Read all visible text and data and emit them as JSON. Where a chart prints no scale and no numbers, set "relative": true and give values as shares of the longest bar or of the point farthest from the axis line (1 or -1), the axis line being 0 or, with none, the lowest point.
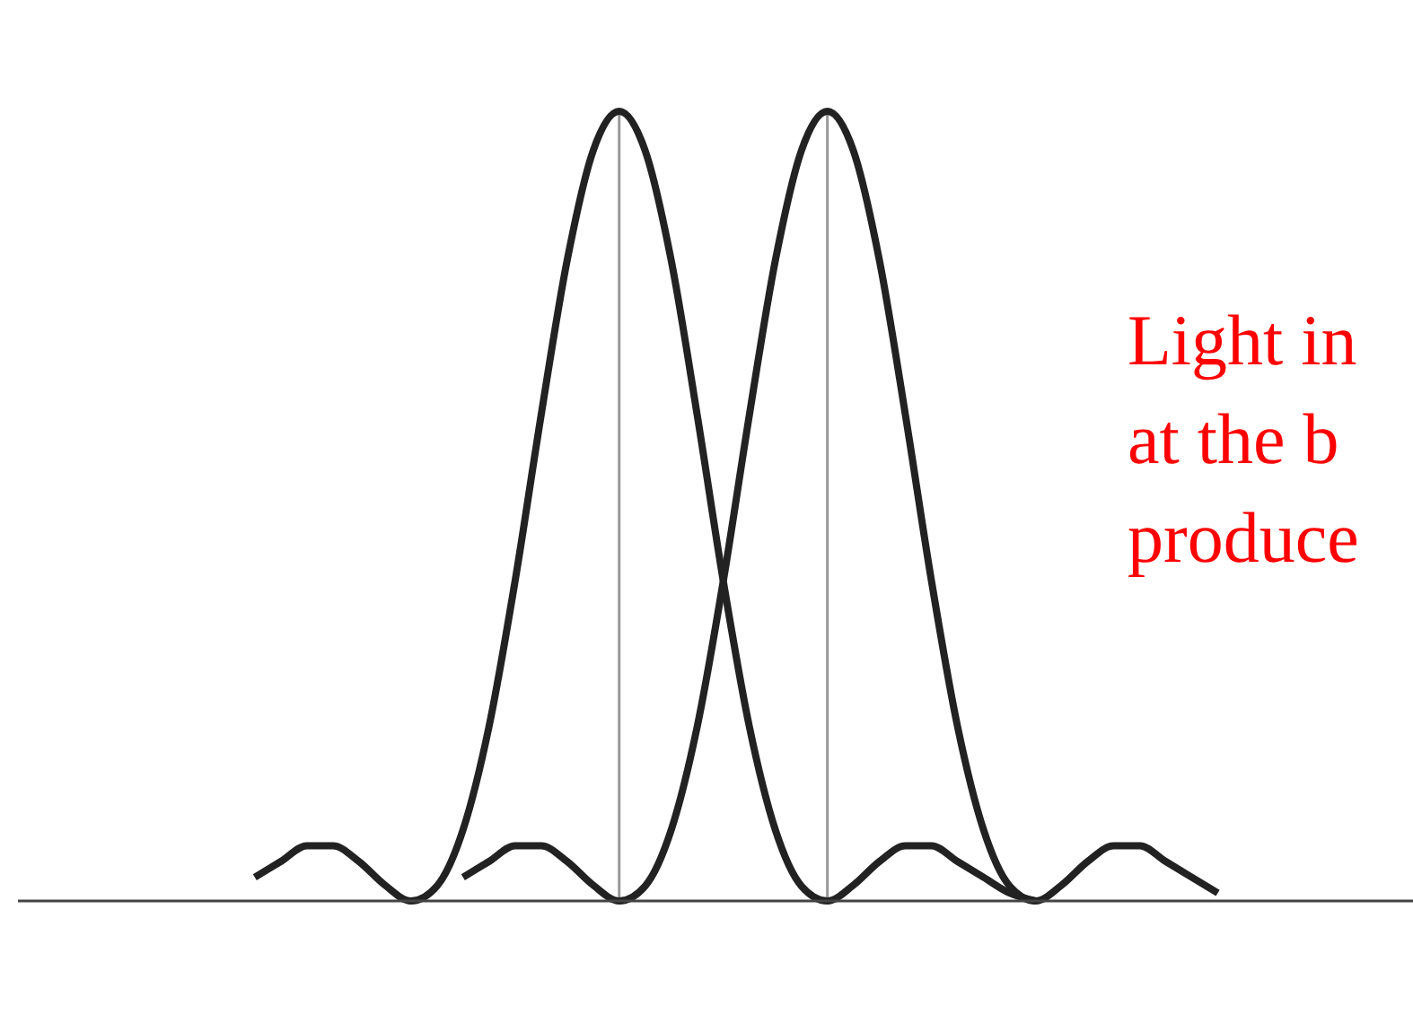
{
  "chart_data": {
    "type": "line",
    "relative": true,
    "marker": "none",
    "line_style": "solid",
    "categories": [
      null,
      null,
      null,
      null,
      null,
      null,
      null,
      null,
      null,
      null,
      null,
      null,
      null,
      null,
      null,
      null,
      null,
      null,
      null,
      null,
      null,
      null,
      null,
      null,
      null,
      null,
      null,
      null,
      null,
      null,
      null,
      null,
      null,
      null,
      null,
      null,
      null,
      null
    ],
    "series": [
      {
        "color": "#222222",
        "values": [
          0.03,
          0.05,
          0.07,
          0.07,
          0.05,
          0.02,
          0,
          0.019,
          0.09,
          0.221,
          0.405,
          0.615,
          0.811,
          0.95,
          1,
          0.95,
          0.811,
          0.615,
          0.405,
          0.221,
          0.09,
          0.019,
          0,
          0.02,
          0.05,
          0.07,
          0.07,
          0.05,
          0.03,
          0.01,
          0,
          null,
          null,
          null,
          null,
          null,
          null,
          null
        ]
      },
      {
        "color": "#222222",
        "values": [
          null,
          null,
          null,
          null,
          null,
          null,
          null,
          null,
          0.03,
          0.05,
          0.07,
          0.07,
          0.05,
          0.02,
          0,
          0.019,
          0.09,
          0.221,
          0.405,
          0.615,
          0.811,
          0.95,
          1,
          0.95,
          0.811,
          0.615,
          0.405,
          0.221,
          0.09,
          0.019,
          0,
          0.02,
          0.05,
          0.07,
          0.07,
          0.05,
          0.03,
          0.01
        ]
      }
    ],
    "annotations": [
      "Light in",
      "at the b",
      "produce"
    ]
  }
}
